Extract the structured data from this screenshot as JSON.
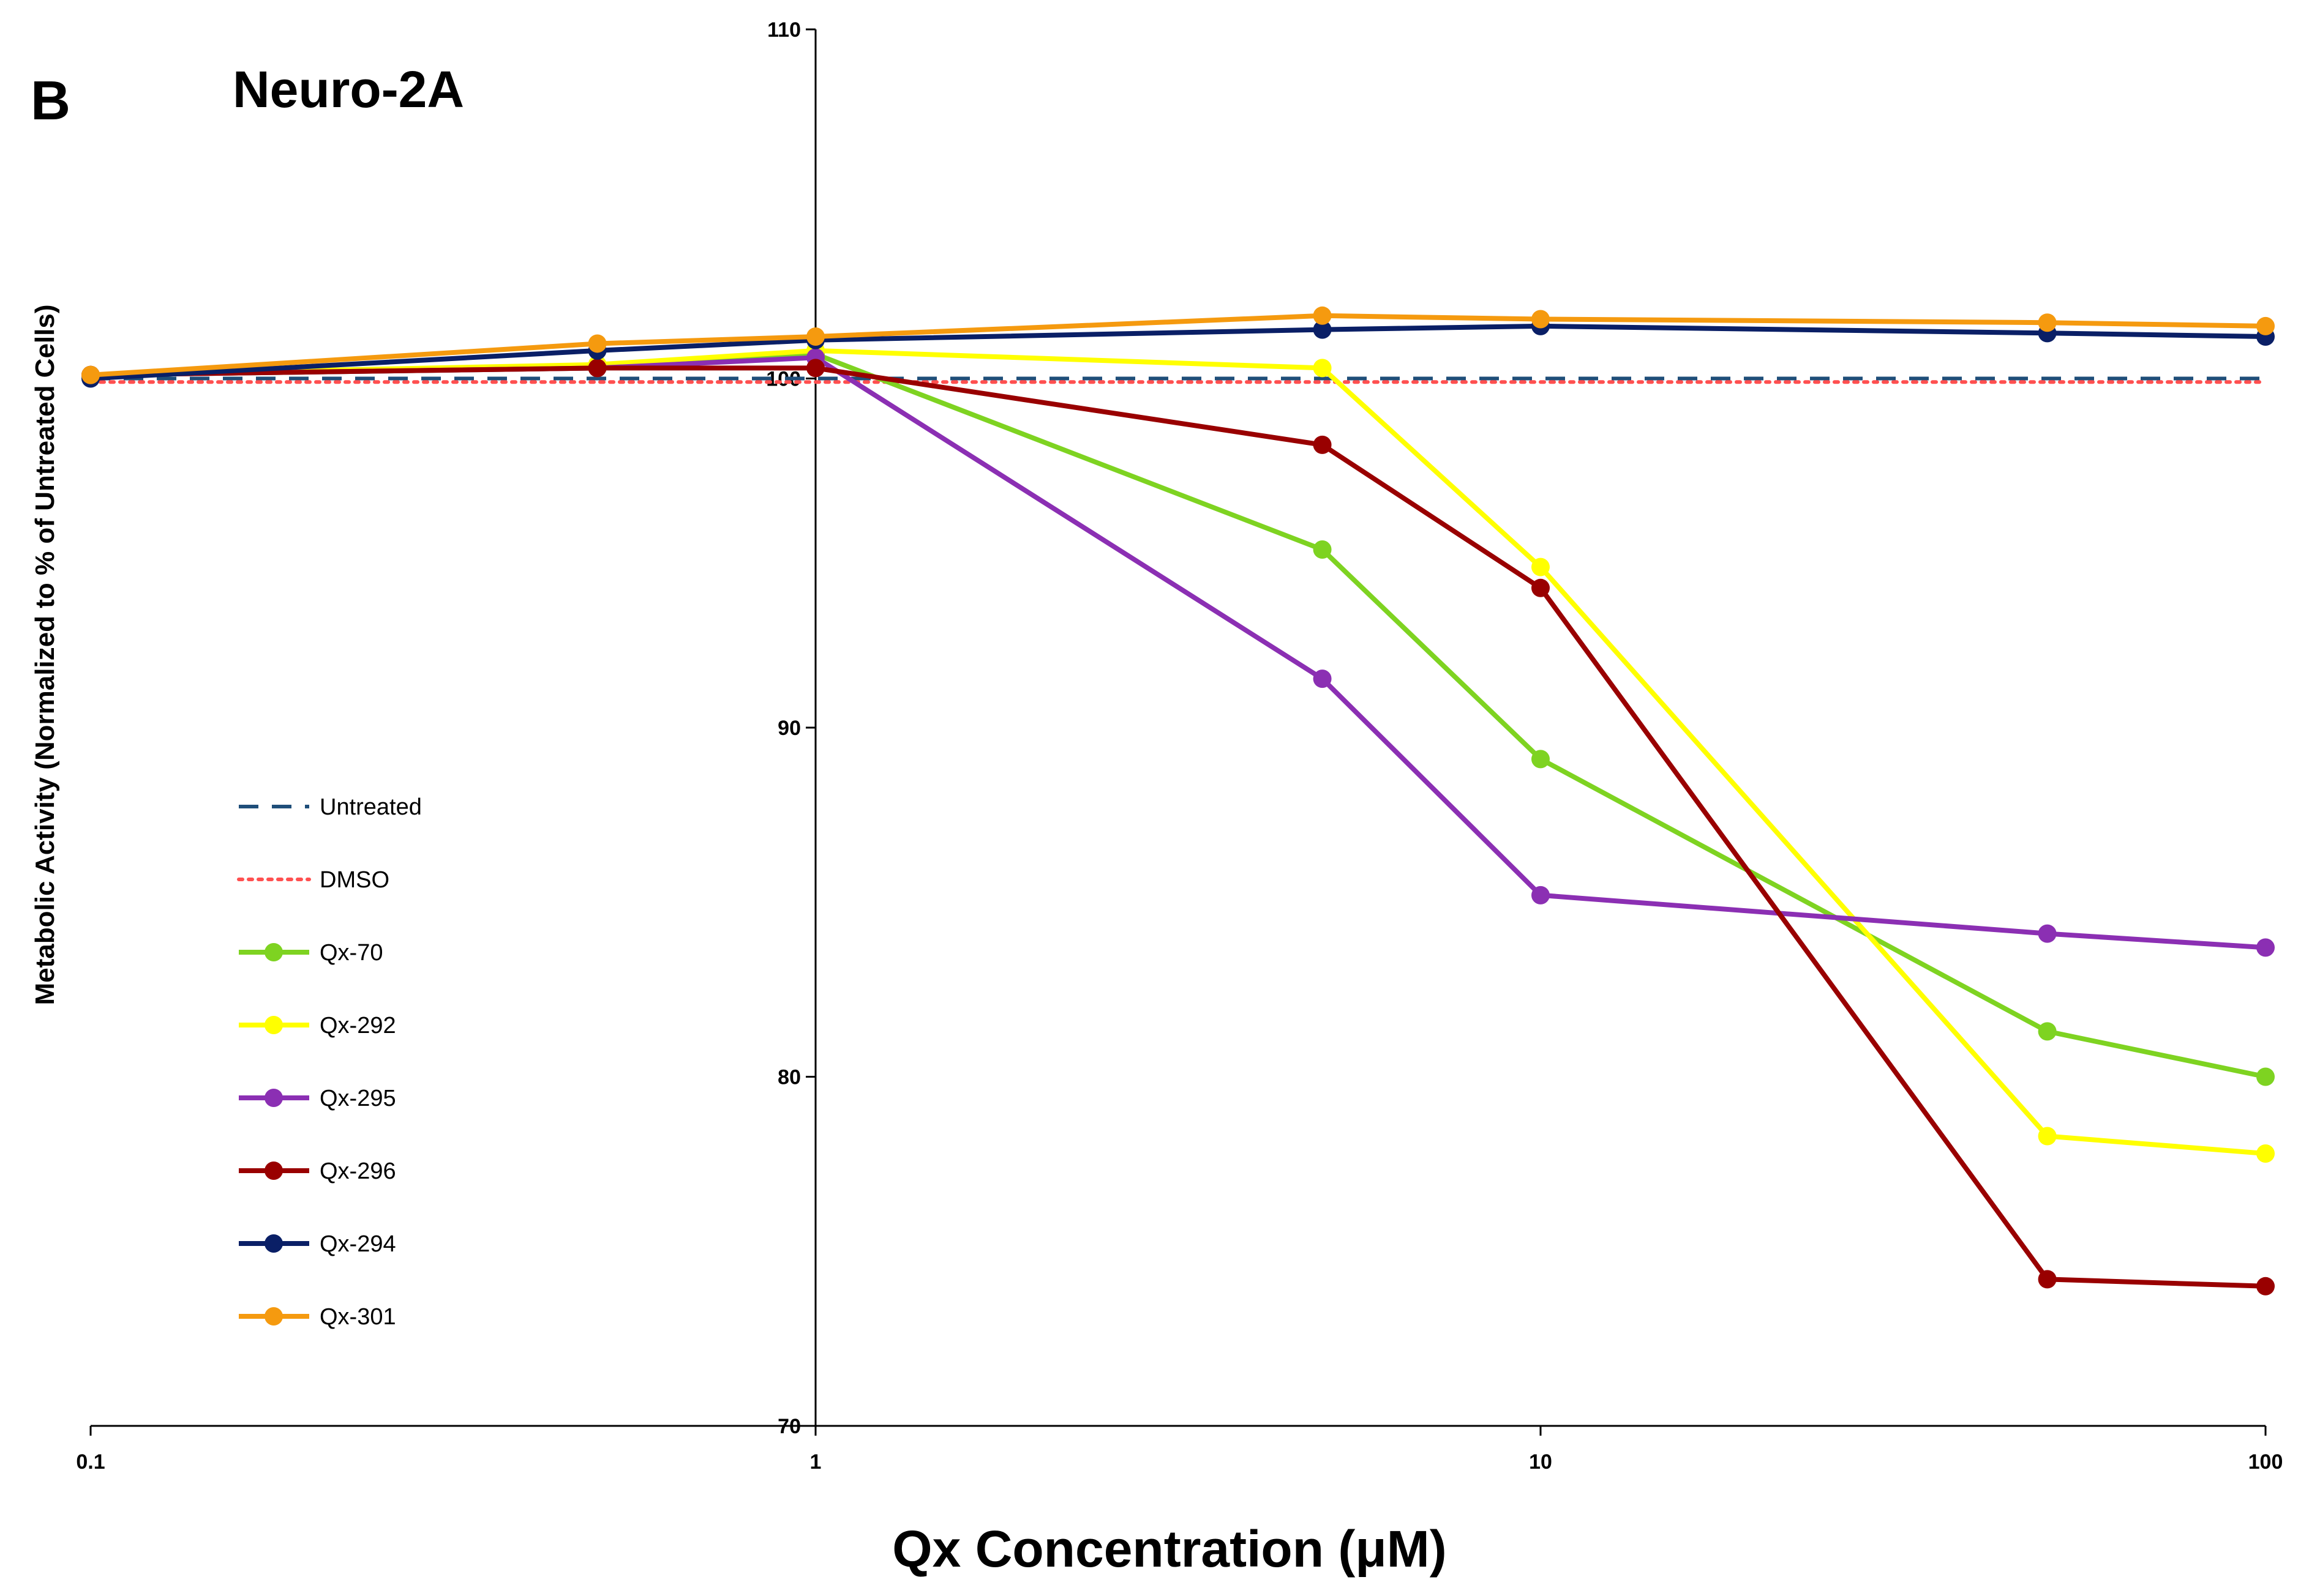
{
  "panel_label": "B",
  "chart_data": {
    "type": "line",
    "title": "Neuro-2A",
    "xlabel": "Qx Concentration (μM)",
    "ylabel": "Metabolic Activity (Normalized to % of Untreated Cells)",
    "xscale": "log",
    "xlim": [
      0.1,
      100
    ],
    "ylim": [
      70,
      110
    ],
    "x_ticks": [
      0.1,
      1,
      10,
      100
    ],
    "x_tick_labels": [
      "0.1",
      "1",
      "10",
      "100"
    ],
    "y_ticks": [
      70,
      80,
      90,
      100,
      110
    ],
    "y_tick_labels": [
      "70",
      "80",
      "90",
      "100",
      "110"
    ],
    "legend_position": "left",
    "series": [
      {
        "name": "Untreated",
        "color": "#1f4e79",
        "style": "dashed",
        "markers": false,
        "x": [
          0.1,
          100
        ],
        "y": [
          100,
          100
        ]
      },
      {
        "name": "DMSO",
        "color": "#ff5050",
        "style": "dotted",
        "markers": false,
        "x": [
          0.1,
          100
        ],
        "y": [
          99.9,
          99.9
        ]
      },
      {
        "name": "Qx-70",
        "color": "#7ed321",
        "style": "solid",
        "markers": true,
        "x": [
          0.1,
          0.5,
          1,
          5,
          10,
          50,
          100
        ],
        "y": [
          100.1,
          100.3,
          100.7,
          95.1,
          89.1,
          81.3,
          80.0
        ]
      },
      {
        "name": "Qx-292",
        "color": "#ffff00",
        "style": "solid",
        "markers": true,
        "x": [
          0.1,
          0.5,
          1,
          5,
          10,
          50,
          100
        ],
        "y": [
          100.1,
          100.4,
          100.8,
          100.3,
          94.6,
          78.3,
          77.8
        ]
      },
      {
        "name": "Qx-295",
        "color": "#8b2fb3",
        "style": "solid",
        "markers": true,
        "x": [
          0.1,
          0.5,
          1,
          5,
          10,
          50,
          100
        ],
        "y": [
          100.1,
          100.3,
          100.6,
          91.4,
          85.2,
          84.1,
          83.7
        ]
      },
      {
        "name": "Qx-296",
        "color": "#990000",
        "style": "solid",
        "markers": true,
        "x": [
          0.1,
          0.5,
          1,
          5,
          10,
          50,
          100
        ],
        "y": [
          100.1,
          100.3,
          100.3,
          98.1,
          94.0,
          74.2,
          74.0
        ]
      },
      {
        "name": "Qx-294",
        "color": "#0a1f66",
        "style": "solid",
        "markers": true,
        "x": [
          0.1,
          0.5,
          1,
          5,
          10,
          50,
          100
        ],
        "y": [
          100.0,
          100.8,
          101.1,
          101.4,
          101.5,
          101.3,
          101.2
        ]
      },
      {
        "name": "Qx-301",
        "color": "#f59a0f",
        "style": "solid",
        "markers": true,
        "x": [
          0.1,
          0.5,
          1,
          5,
          10,
          50,
          100
        ],
        "y": [
          100.1,
          101.0,
          101.2,
          101.8,
          101.7,
          101.6,
          101.5
        ]
      }
    ]
  }
}
